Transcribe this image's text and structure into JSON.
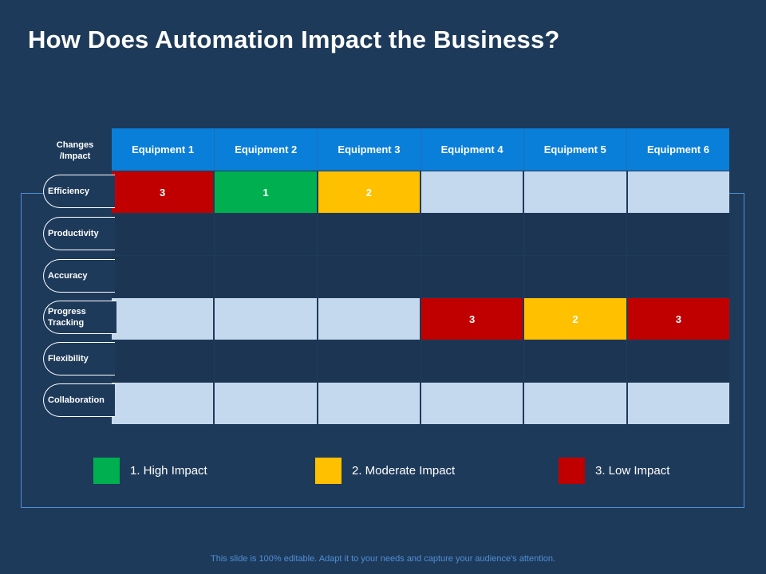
{
  "title": "How Does Automation Impact the Business?",
  "table": {
    "corner_label": "Changes /Impact",
    "columns": [
      "Equipment 1",
      "Equipment 2",
      "Equipment 3",
      "Equipment 4",
      "Equipment 5",
      "Equipment 6"
    ],
    "rows": [
      {
        "label": "Efficiency",
        "cells": [
          "3",
          "1",
          "2",
          "",
          "",
          ""
        ]
      },
      {
        "label": "Productivity",
        "cells": [
          "",
          "",
          "",
          "",
          "",
          ""
        ]
      },
      {
        "label": "Accuracy",
        "cells": [
          "",
          "",
          "",
          "",
          "",
          ""
        ]
      },
      {
        "label": "Progress Tracking",
        "cells": [
          "",
          "",
          "",
          "3",
          "2",
          "3"
        ]
      },
      {
        "label": "Flexibility",
        "cells": [
          "",
          "",
          "",
          "",
          "",
          ""
        ]
      },
      {
        "label": "Collaboration",
        "cells": [
          "",
          "",
          "",
          "",
          "",
          ""
        ]
      }
    ]
  },
  "legend": [
    {
      "label": "1.  High Impact",
      "color": "#00b050"
    },
    {
      "label": "2.  Moderate Impact",
      "color": "#ffc000"
    },
    {
      "label": "3.  Low Impact",
      "color": "#c00000"
    }
  ],
  "footer": "This slide is 100% editable. Adapt it to your needs and capture your audience's attention."
}
